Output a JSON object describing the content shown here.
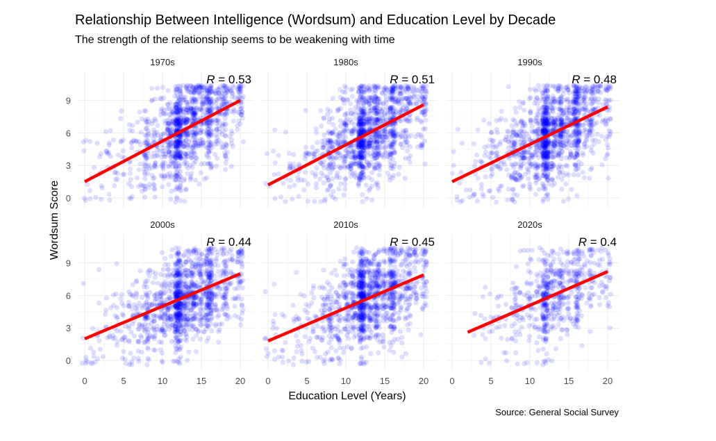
{
  "chart_data": {
    "type": "scatter",
    "title": "Relationship Between Intelligence (Wordsum) and Education Level by Decade",
    "subtitle": "The strength of the relationship seems to be weakening with time",
    "xlabel": "Education Level (Years)",
    "ylabel": "Wordsum Score",
    "caption": "Source: General Social Survey",
    "xlim": [
      0,
      20
    ],
    "ylim": [
      0,
      10
    ],
    "x_ticks": [
      0,
      5,
      10,
      15,
      20
    ],
    "y_ticks": [
      0,
      3,
      6,
      9
    ],
    "grid": true,
    "point_color": "#0000ff",
    "fit_line_color": "#ff0000",
    "r_prefix": "R",
    "panels": [
      {
        "name": "1970s",
        "r_label": " = 0.53",
        "fit": {
          "x": [
            0,
            20
          ],
          "y": [
            1.5,
            9.0
          ]
        }
      },
      {
        "name": "1980s",
        "r_label": " = 0.51",
        "fit": {
          "x": [
            0,
            20
          ],
          "y": [
            1.2,
            8.6
          ]
        }
      },
      {
        "name": "1990s",
        "r_label": " = 0.48",
        "fit": {
          "x": [
            0,
            20
          ],
          "y": [
            1.5,
            8.4
          ]
        }
      },
      {
        "name": "2000s",
        "r_label": " = 0.44",
        "fit": {
          "x": [
            0,
            20
          ],
          "y": [
            2.0,
            8.0
          ]
        }
      },
      {
        "name": "2010s",
        "r_label": " = 0.45",
        "fit": {
          "x": [
            0,
            20
          ],
          "y": [
            1.8,
            7.9
          ]
        }
      },
      {
        "name": "2020s",
        "r_label": " = 0.4",
        "fit": {
          "x": [
            2,
            20
          ],
          "y": [
            2.6,
            8.2
          ]
        }
      }
    ]
  }
}
